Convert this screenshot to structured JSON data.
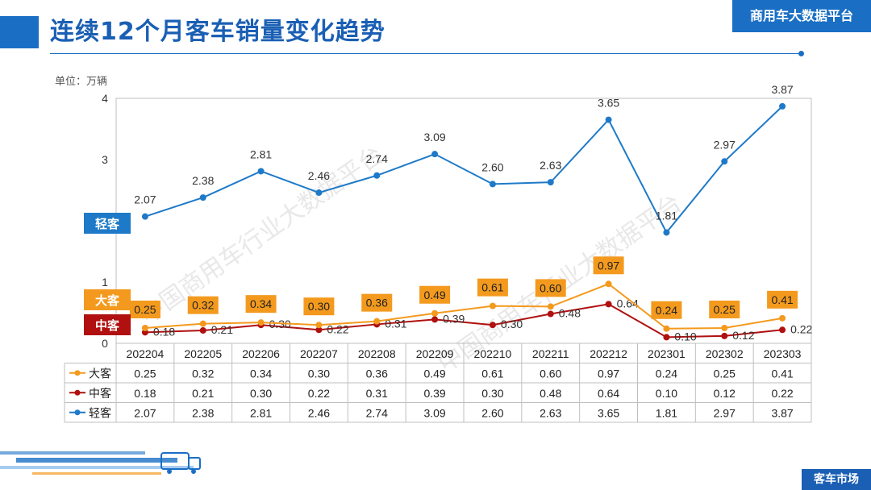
{
  "title": "连续12个月客车销量变化趋势",
  "brand": "商用车大数据平台",
  "unit_label": "单位：万辆",
  "footer_tag": "客车市场",
  "watermark": "中国商用车行业大数据平台",
  "colors": {
    "light": "#1e7ac8",
    "medium": "#b01010",
    "large": "#f39a1e",
    "accent": "#1a6fc4"
  },
  "chart_data": {
    "type": "line",
    "title": "连续12个月客车销量变化趋势",
    "ylabel": "单位：万辆",
    "ylim": [
      0,
      4
    ],
    "yticks": [
      0,
      1,
      3,
      4
    ],
    "categories": [
      "202204",
      "202205",
      "202206",
      "202207",
      "202208",
      "202209",
      "202210",
      "202211",
      "202212",
      "202301",
      "202302",
      "202303"
    ],
    "series": [
      {
        "key": "large",
        "name": "大客",
        "values": [
          0.25,
          0.32,
          0.34,
          0.3,
          0.36,
          0.49,
          0.61,
          0.6,
          0.97,
          0.24,
          0.25,
          0.41
        ]
      },
      {
        "key": "medium",
        "name": "中客",
        "values": [
          0.18,
          0.21,
          0.3,
          0.22,
          0.31,
          0.39,
          0.3,
          0.48,
          0.64,
          0.1,
          0.12,
          0.22
        ]
      },
      {
        "key": "light",
        "name": "轻客",
        "values": [
          2.07,
          2.38,
          2.81,
          2.46,
          2.74,
          3.09,
          2.6,
          2.63,
          3.65,
          1.81,
          2.97,
          3.87
        ]
      }
    ]
  }
}
